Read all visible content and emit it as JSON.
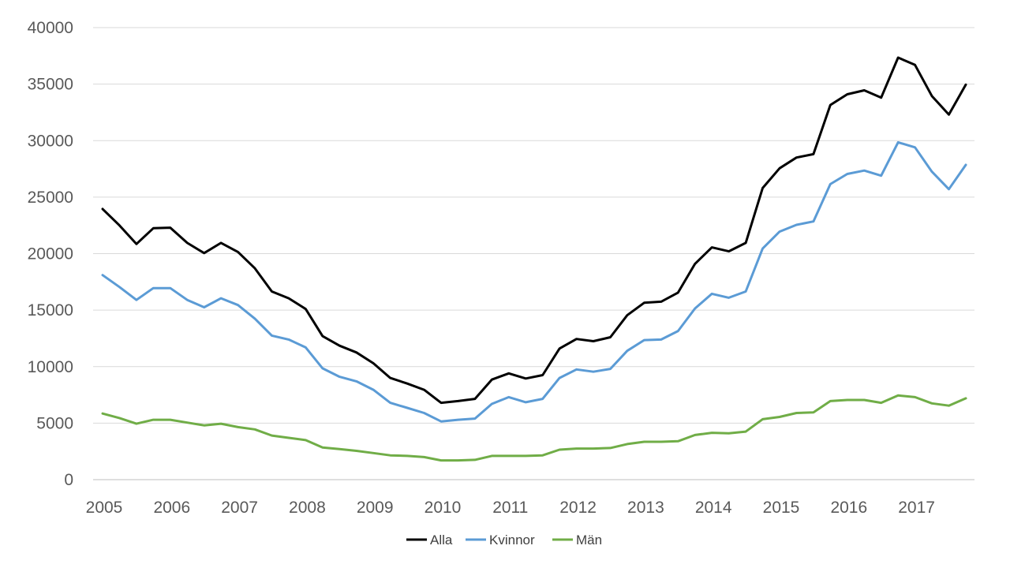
{
  "colors": {
    "Alla": "#000000",
    "Kvinnor": "#5b9bd5",
    "Män": "#70ad47"
  },
  "chart_data": {
    "type": "line",
    "title": "",
    "xlabel": "",
    "ylabel": "",
    "ylim": [
      0,
      40000
    ],
    "yticks": [
      0,
      5000,
      10000,
      15000,
      20000,
      25000,
      30000,
      35000,
      40000
    ],
    "xticks": [
      "2005",
      "2006",
      "2007",
      "2008",
      "2009",
      "2010",
      "2011",
      "2012",
      "2013",
      "2014",
      "2015",
      "2016",
      "2017"
    ],
    "x_start_year": 2005,
    "points_per_year": 4,
    "grid": true,
    "legend": "bottom",
    "series": [
      {
        "name": "Alla",
        "values": [
          23950,
          22500,
          20850,
          22250,
          22300,
          20950,
          20050,
          20950,
          20150,
          18700,
          16650,
          16050,
          15100,
          12700,
          11850,
          11250,
          10300,
          9000,
          8500,
          7950,
          6800,
          6950,
          7150,
          8850,
          9400,
          8950,
          9250,
          11600,
          12450,
          12250,
          12600,
          14550,
          15650,
          15750,
          16550,
          19100,
          20550,
          20200,
          20950,
          25800,
          27550,
          28500,
          28800,
          33150,
          34100,
          34450,
          33800,
          37350,
          36700,
          33950,
          32300,
          34950
        ]
      },
      {
        "name": "Kvinnor",
        "values": [
          18100,
          17050,
          15900,
          16950,
          16950,
          15900,
          15250,
          16050,
          15450,
          14250,
          12750,
          12400,
          11700,
          9850,
          9100,
          8700,
          7950,
          6800,
          6350,
          5900,
          5150,
          5300,
          5400,
          6700,
          7300,
          6850,
          7150,
          9000,
          9750,
          9550,
          9800,
          11400,
          12350,
          12400,
          13150,
          15150,
          16450,
          16100,
          16650,
          20450,
          21950,
          22550,
          22850,
          26150,
          27050,
          27350,
          26900,
          29850,
          29400,
          27250,
          25700,
          27850
        ]
      },
      {
        "name": "Män",
        "values": [
          5850,
          5450,
          4950,
          5300,
          5300,
          5050,
          4800,
          4950,
          4650,
          4450,
          3900,
          3700,
          3500,
          2850,
          2700,
          2550,
          2350,
          2150,
          2100,
          2000,
          1700,
          1700,
          1750,
          2100,
          2100,
          2100,
          2150,
          2650,
          2750,
          2750,
          2800,
          3150,
          3350,
          3350,
          3400,
          3950,
          4150,
          4100,
          4250,
          5350,
          5550,
          5900,
          5950,
          6950,
          7050,
          7050,
          6800,
          7450,
          7300,
          6750,
          6550,
          7200
        ]
      }
    ]
  }
}
